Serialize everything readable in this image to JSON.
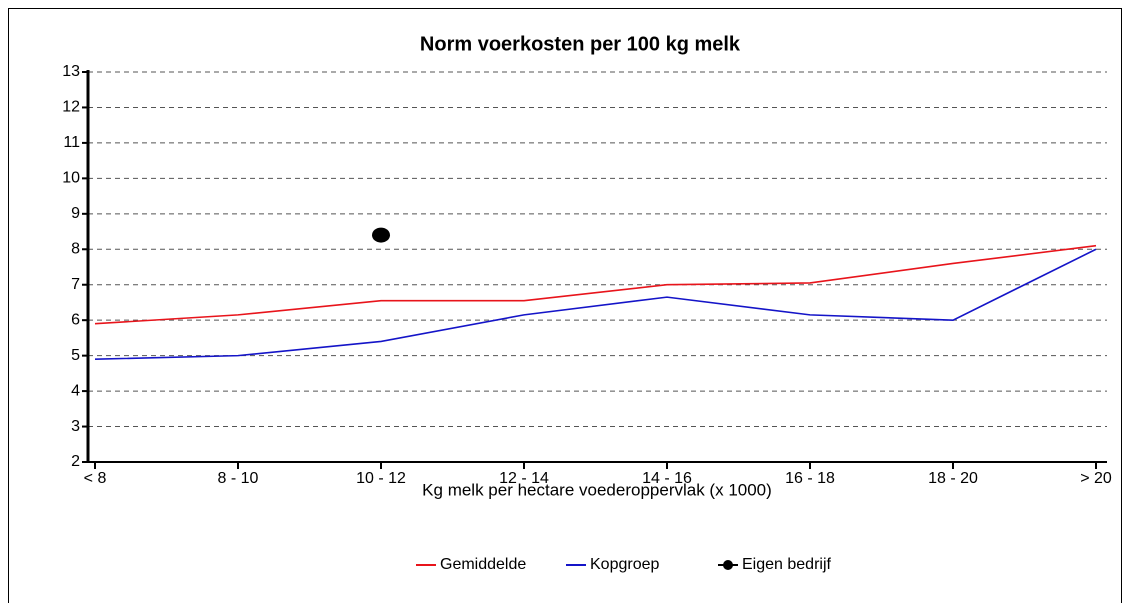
{
  "chart_data": {
    "type": "line",
    "title": "Norm voerkosten per 100 kg melk",
    "x_label": "Kg melk per hectare voederoppervlak (x 1000)",
    "categories": [
      "< 8",
      "8 - 10",
      "10 - 12",
      "12 - 14",
      "14 - 16",
      "16 - 18",
      "18 - 20",
      "> 20"
    ],
    "series": [
      {
        "name": "Gemiddelde",
        "color": "#e8141b",
        "style": "line",
        "values": [
          5.9,
          6.15,
          6.55,
          6.55,
          7.0,
          7.05,
          7.6,
          8.1
        ]
      },
      {
        "name": "Kopgroep",
        "color": "#1414c8",
        "style": "line",
        "values": [
          4.9,
          5.0,
          5.4,
          6.15,
          6.65,
          6.15,
          6.0,
          8.0
        ]
      },
      {
        "name": "Eigen bedrijf",
        "color": "#000000",
        "style": "marker",
        "values": [
          null,
          null,
          8.4,
          null,
          null,
          null,
          null,
          null
        ]
      }
    ],
    "ylim": [
      2,
      13
    ],
    "yticks": [
      2,
      3,
      4,
      5,
      6,
      7,
      8,
      9,
      10,
      11,
      12,
      13
    ],
    "grid": true,
    "legend": "bottom"
  }
}
